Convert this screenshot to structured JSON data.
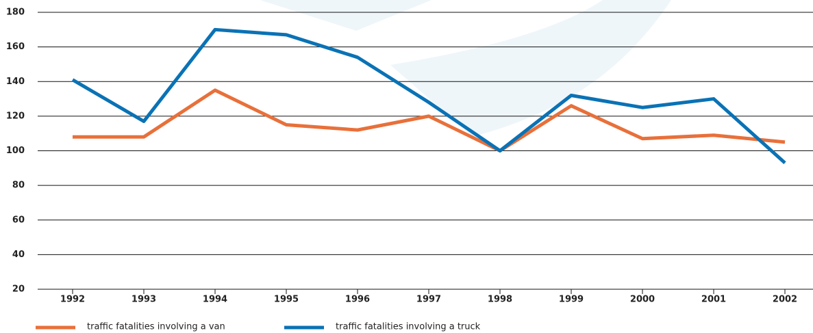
{
  "chart_data": {
    "type": "line",
    "categories": [
      "1992",
      "1993",
      "1994",
      "1995",
      "1996",
      "1997",
      "1998",
      "1999",
      "2000",
      "2001",
      "2002"
    ],
    "series": [
      {
        "name": "traffic fatalities involving a van",
        "color": "#e8703a",
        "values": [
          108,
          108,
          135,
          115,
          112,
          120,
          100,
          126,
          107,
          109,
          105
        ]
      },
      {
        "name": "traffic fatalities involving a truck",
        "color": "#0a72b5",
        "values": [
          141,
          117,
          170,
          167,
          154,
          128,
          100,
          132,
          125,
          130,
          93
        ]
      }
    ],
    "ylim": [
      20,
      180
    ],
    "yticks": [
      20,
      40,
      60,
      80,
      100,
      120,
      140,
      160,
      180
    ],
    "grid": true
  }
}
